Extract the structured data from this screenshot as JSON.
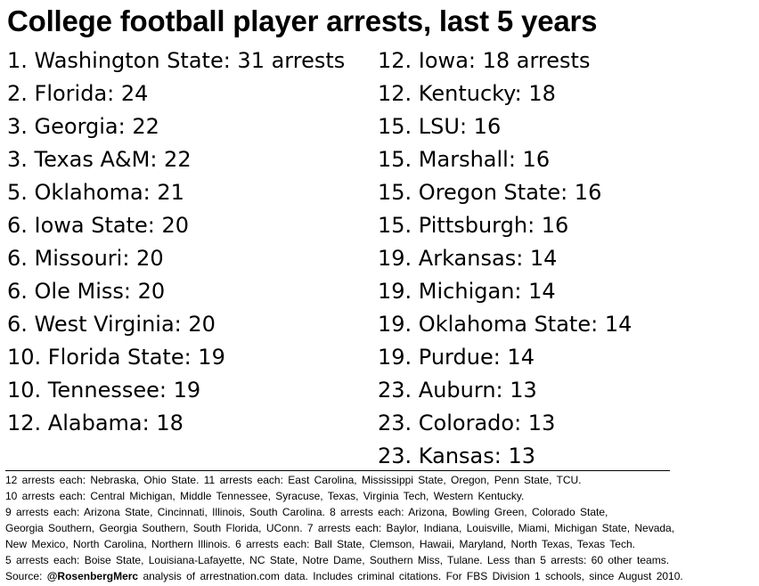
{
  "title": "College football player arrests, last 5 years",
  "rankings_left": [
    "1. Washington State: 31 arrests",
    "2. Florida: 24",
    "3. Georgia: 22",
    "3. Texas A&M: 22",
    "5. Oklahoma: 21",
    "6. Iowa State: 20",
    "6. Missouri: 20",
    "6. Ole Miss: 20",
    "6. West Virginia: 20",
    "10. Florida State: 19",
    "10. Tennessee: 19",
    "12. Alabama: 18"
  ],
  "rankings_right": [
    "12. Iowa: 18 arrests",
    "12. Kentucky: 18",
    "15. LSU: 16",
    "15. Marshall: 16",
    "15. Oregon State: 16",
    "15. Pittsburgh: 16",
    "19. Arkansas: 14",
    "19. Michigan: 14",
    "19. Oklahoma State: 14",
    "19. Purdue: 14",
    "23. Auburn: 13",
    "23. Colorado: 13",
    "23. Kansas: 13"
  ],
  "notes": [
    "12 arrests each: Nebraska, Ohio State.  11 arrests each: East Carolina, Mississippi State, Oregon, Penn State, TCU.",
    "10 arrests each: Central Michigan, Middle Tennessee, Syracuse, Texas, Virginia Tech, Western Kentucky.",
    "9 arrests each: Arizona State, Cincinnati, Illinois, South Carolina.  8 arrests each: Arizona, Bowling Green, Colorado State,",
    "Georgia Southern, Georgia Southern, South Florida, UConn.  7 arrests each: Baylor, Indiana, Louisville, Miami, Michigan State, Nevada,",
    "New Mexico, North Carolina, Northern Illinois.  6 arrests each: Ball State, Clemson, Hawaii, Maryland, North Texas, Texas Tech.",
    "5 arrests each: Boise State, Louisiana-Lafayette, NC State, Notre Dame, Southern Miss, Tulane.  Less than 5 arrests: 60 other teams."
  ],
  "source": {
    "prefix": "Source: ",
    "handle": "@RosenbergMerc",
    "text": " analysis of arrestnation.com data. Includes criminal citations. For FBS Division 1 schools, since August 2010."
  }
}
